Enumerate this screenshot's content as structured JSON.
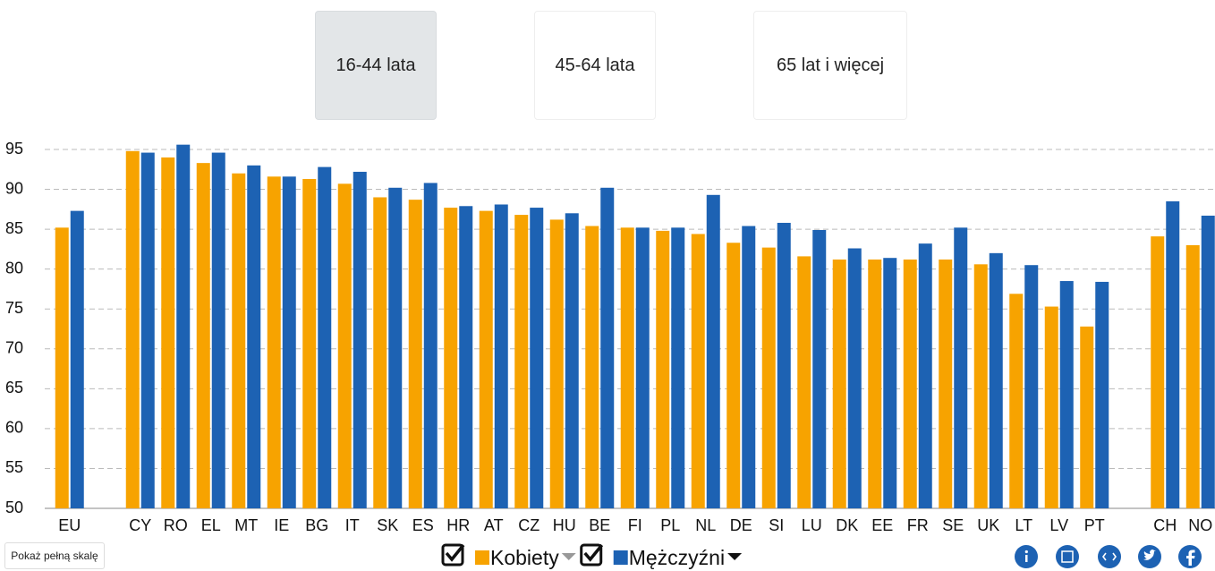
{
  "tabs": [
    "16-44 lata",
    "45-64 lata",
    "65 lat i więcej"
  ],
  "scale_button": "Pokaż pełną skalę",
  "chart_data": {
    "type": "bar",
    "categories": [
      "EU",
      null,
      "CY",
      "RO",
      "EL",
      "MT",
      "IE",
      "BG",
      "IT",
      "SK",
      "ES",
      "HR",
      "AT",
      "CZ",
      "HU",
      "BE",
      "FI",
      "PL",
      "NL",
      "DE",
      "SI",
      "LU",
      "DK",
      "EE",
      "FR",
      "SE",
      "UK",
      "LT",
      "LV",
      "PT",
      null,
      "CH",
      "NO"
    ],
    "series": [
      {
        "name": "Kobiety",
        "color": "#f7a300",
        "values": [
          85.2,
          null,
          94.8,
          94.0,
          93.3,
          92.0,
          91.6,
          91.3,
          90.7,
          89.0,
          88.7,
          87.7,
          87.3,
          86.8,
          86.2,
          85.4,
          85.2,
          84.8,
          84.4,
          83.3,
          82.7,
          81.6,
          81.2,
          81.2,
          81.2,
          81.2,
          80.6,
          76.9,
          75.3,
          72.8,
          null,
          84.1,
          83.0
        ]
      },
      {
        "name": "Mężczyźni",
        "color": "#1d62b3",
        "values": [
          87.3,
          null,
          94.6,
          95.6,
          94.6,
          93.0,
          91.6,
          92.8,
          92.2,
          90.2,
          90.8,
          87.9,
          88.1,
          87.7,
          87.0,
          90.2,
          85.2,
          85.2,
          89.3,
          85.4,
          85.8,
          84.9,
          82.6,
          81.4,
          83.2,
          85.2,
          82.0,
          80.5,
          78.5,
          78.4,
          null,
          88.5,
          86.7
        ]
      }
    ],
    "ylim": [
      50,
      97
    ],
    "yticks": [
      50,
      55,
      60,
      65,
      70,
      75,
      80,
      85,
      90,
      95
    ],
    "grid": true
  }
}
